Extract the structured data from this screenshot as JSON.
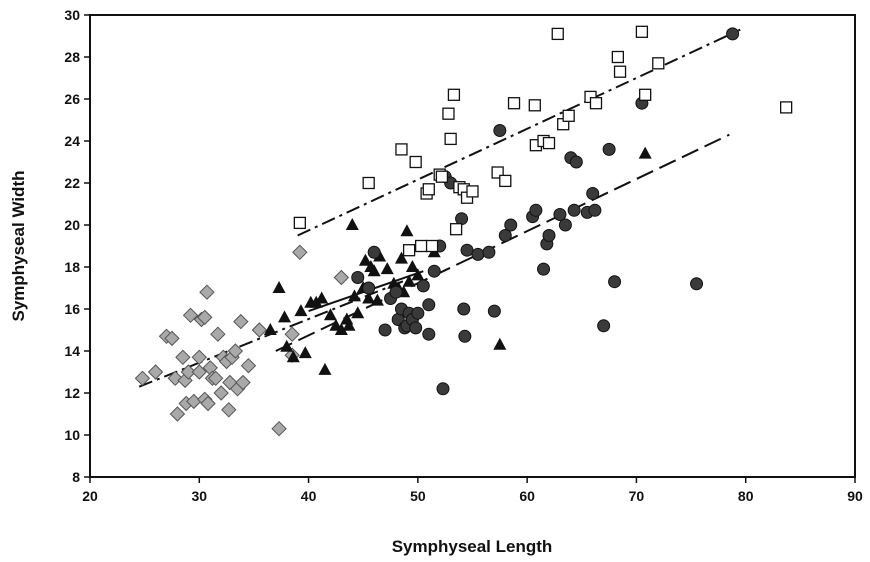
{
  "chart_data": {
    "type": "scatter",
    "xlabel": "Symphyseal Length",
    "ylabel": "Symphyseal Width",
    "xlim": [
      20,
      90
    ],
    "ylim": [
      8,
      30
    ],
    "xticks": [
      20,
      30,
      40,
      50,
      60,
      70,
      80,
      90
    ],
    "yticks": [
      8,
      10,
      12,
      14,
      16,
      18,
      20,
      22,
      24,
      26,
      28,
      30
    ],
    "grid": false,
    "series": [
      {
        "marker": "diamond",
        "color": "#a9a9a9",
        "points": [
          [
            24.8,
            12.7
          ],
          [
            26.0,
            13.0
          ],
          [
            27.0,
            14.7
          ],
          [
            27.5,
            14.6
          ],
          [
            27.8,
            12.7
          ],
          [
            28.0,
            11.0
          ],
          [
            28.5,
            13.7
          ],
          [
            28.7,
            12.6
          ],
          [
            28.8,
            11.5
          ],
          [
            29.0,
            13.0
          ],
          [
            29.2,
            15.7
          ],
          [
            29.5,
            11.6
          ],
          [
            30.0,
            13.0
          ],
          [
            30.0,
            13.7
          ],
          [
            30.2,
            15.5
          ],
          [
            30.5,
            11.7
          ],
          [
            30.5,
            15.6
          ],
          [
            30.7,
            16.8
          ],
          [
            30.8,
            11.5
          ],
          [
            31.0,
            13.2
          ],
          [
            31.2,
            12.7
          ],
          [
            31.5,
            12.7
          ],
          [
            31.7,
            14.8
          ],
          [
            32.0,
            12.0
          ],
          [
            32.2,
            13.7
          ],
          [
            32.5,
            13.5
          ],
          [
            32.7,
            11.2
          ],
          [
            32.8,
            12.5
          ],
          [
            33.0,
            13.7
          ],
          [
            33.3,
            14.0
          ],
          [
            33.5,
            12.2
          ],
          [
            33.8,
            15.4
          ],
          [
            34.0,
            12.5
          ],
          [
            34.5,
            13.3
          ],
          [
            35.5,
            15.0
          ],
          [
            37.3,
            10.3
          ],
          [
            38.5,
            14.8
          ],
          [
            38.5,
            13.8
          ],
          [
            39.2,
            18.7
          ],
          [
            43.0,
            17.5
          ]
        ]
      },
      {
        "marker": "triangle",
        "color": "#111111",
        "points": [
          [
            36.5,
            15.0
          ],
          [
            37.3,
            17.0
          ],
          [
            37.8,
            15.6
          ],
          [
            38.0,
            14.2
          ],
          [
            38.6,
            13.7
          ],
          [
            39.3,
            15.9
          ],
          [
            39.7,
            13.9
          ],
          [
            40.2,
            16.3
          ],
          [
            40.7,
            16.3
          ],
          [
            41.2,
            16.5
          ],
          [
            41.5,
            13.1
          ],
          [
            42.0,
            15.7
          ],
          [
            42.5,
            15.2
          ],
          [
            43.0,
            15.0
          ],
          [
            43.5,
            15.5
          ],
          [
            43.7,
            15.2
          ],
          [
            44.0,
            20.0
          ],
          [
            44.2,
            16.6
          ],
          [
            44.5,
            15.8
          ],
          [
            45.0,
            17.0
          ],
          [
            45.2,
            18.3
          ],
          [
            45.5,
            16.5
          ],
          [
            45.7,
            18.0
          ],
          [
            46.0,
            17.8
          ],
          [
            46.3,
            16.4
          ],
          [
            46.5,
            18.5
          ],
          [
            47.2,
            17.9
          ],
          [
            47.8,
            17.2
          ],
          [
            48.2,
            17.0
          ],
          [
            48.5,
            18.4
          ],
          [
            48.7,
            16.8
          ],
          [
            49.0,
            19.7
          ],
          [
            49.2,
            17.3
          ],
          [
            49.5,
            18.0
          ],
          [
            50.0,
            17.6
          ],
          [
            51.5,
            18.7
          ],
          [
            57.5,
            14.3
          ],
          [
            70.8,
            23.4
          ]
        ]
      },
      {
        "marker": "circle",
        "color": "#3a3a3a",
        "points": [
          [
            44.5,
            17.5
          ],
          [
            45.5,
            17.0
          ],
          [
            46.0,
            18.7
          ],
          [
            47.0,
            15.0
          ],
          [
            47.5,
            16.5
          ],
          [
            48.0,
            16.8
          ],
          [
            48.2,
            15.5
          ],
          [
            48.5,
            16.0
          ],
          [
            48.8,
            15.1
          ],
          [
            49.0,
            15.2
          ],
          [
            49.2,
            15.8
          ],
          [
            49.5,
            15.5
          ],
          [
            49.8,
            15.1
          ],
          [
            50.0,
            15.8
          ],
          [
            50.5,
            17.1
          ],
          [
            51.0,
            16.2
          ],
          [
            51.0,
            14.8
          ],
          [
            51.5,
            17.8
          ],
          [
            52.0,
            19.0
          ],
          [
            52.3,
            12.2
          ],
          [
            52.5,
            22.3
          ],
          [
            53.0,
            22.0
          ],
          [
            54.0,
            20.3
          ],
          [
            54.2,
            16.0
          ],
          [
            54.3,
            14.7
          ],
          [
            54.5,
            18.8
          ],
          [
            55.5,
            18.6
          ],
          [
            56.5,
            18.7
          ],
          [
            57.0,
            15.9
          ],
          [
            57.5,
            24.5
          ],
          [
            58.0,
            19.5
          ],
          [
            58.5,
            20.0
          ],
          [
            60.5,
            20.4
          ],
          [
            60.8,
            20.7
          ],
          [
            61.5,
            17.9
          ],
          [
            61.8,
            19.1
          ],
          [
            62.0,
            19.5
          ],
          [
            63.0,
            20.5
          ],
          [
            63.5,
            20.0
          ],
          [
            64.0,
            23.2
          ],
          [
            64.3,
            20.7
          ],
          [
            64.5,
            23.0
          ],
          [
            65.5,
            20.6
          ],
          [
            66.0,
            21.5
          ],
          [
            66.2,
            20.7
          ],
          [
            67.0,
            15.2
          ],
          [
            67.5,
            23.6
          ],
          [
            68.0,
            17.3
          ],
          [
            70.5,
            25.8
          ],
          [
            75.5,
            17.2
          ],
          [
            78.8,
            29.1
          ]
        ]
      },
      {
        "marker": "square",
        "color": "#ffffff",
        "points": [
          [
            39.2,
            20.1
          ],
          [
            45.5,
            22.0
          ],
          [
            48.5,
            23.6
          ],
          [
            49.2,
            18.8
          ],
          [
            49.8,
            23.0
          ],
          [
            50.3,
            19.0
          ],
          [
            50.8,
            21.5
          ],
          [
            51.0,
            21.7
          ],
          [
            51.3,
            19.0
          ],
          [
            52.0,
            22.4
          ],
          [
            52.2,
            22.3
          ],
          [
            52.8,
            25.3
          ],
          [
            53.0,
            24.1
          ],
          [
            53.3,
            26.2
          ],
          [
            53.5,
            19.8
          ],
          [
            53.8,
            21.8
          ],
          [
            54.2,
            21.7
          ],
          [
            54.5,
            21.3
          ],
          [
            55.0,
            21.6
          ],
          [
            57.3,
            22.5
          ],
          [
            58.0,
            22.1
          ],
          [
            58.8,
            25.8
          ],
          [
            60.7,
            25.7
          ],
          [
            60.8,
            23.8
          ],
          [
            61.5,
            24.0
          ],
          [
            62.0,
            23.9
          ],
          [
            62.8,
            29.1
          ],
          [
            63.3,
            24.8
          ],
          [
            63.8,
            25.2
          ],
          [
            65.8,
            26.1
          ],
          [
            66.3,
            25.8
          ],
          [
            68.3,
            28.0
          ],
          [
            68.5,
            27.3
          ],
          [
            70.5,
            29.2
          ],
          [
            70.8,
            26.2
          ],
          [
            72.0,
            27.7
          ],
          [
            83.7,
            25.6
          ]
        ]
      }
    ],
    "trendlines": [
      {
        "style": "dash-dot",
        "x": [
          24.5,
          50.0
        ],
        "y": [
          12.3,
          17.6
        ]
      },
      {
        "style": "dash-dot",
        "x": [
          39.0,
          79.5
        ],
        "y": [
          19.5,
          29.3
        ]
      },
      {
        "style": "dashed",
        "x": [
          37.0,
          78.5
        ],
        "y": [
          14.0,
          24.3
        ]
      },
      {
        "style": "solid",
        "x": [
          40.0,
          50.5
        ],
        "y": [
          15.9,
          17.8
        ]
      }
    ]
  }
}
